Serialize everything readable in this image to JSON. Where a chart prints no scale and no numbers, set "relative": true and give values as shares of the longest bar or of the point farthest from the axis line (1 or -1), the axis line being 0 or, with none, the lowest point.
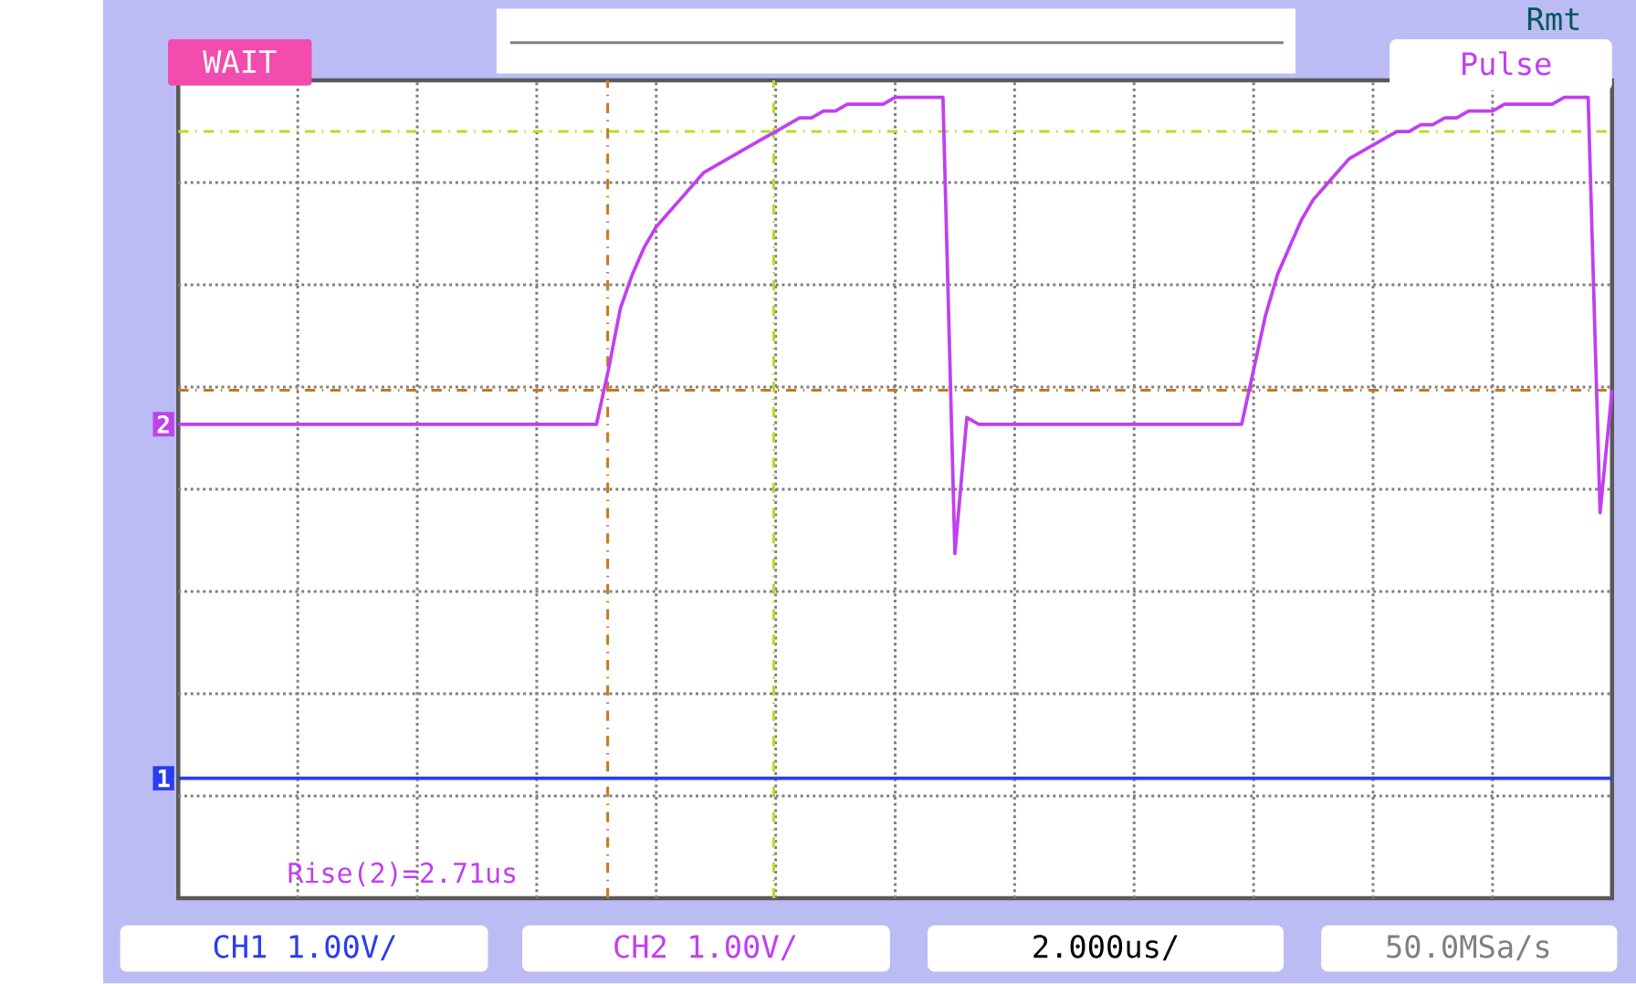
{
  "chart_data": {
    "type": "line",
    "relative": true,
    "grid": true,
    "categories": [
      null,
      null,
      null,
      null,
      null,
      null,
      null,
      null,
      null,
      null,
      null,
      null,
      null,
      null,
      null,
      null,
      null,
      null,
      null,
      null,
      null,
      null,
      null,
      null,
      null,
      null,
      null,
      null,
      null,
      null,
      null,
      null,
      null,
      null,
      null,
      null,
      null,
      null,
      null,
      null,
      null,
      null,
      null,
      null,
      null,
      null,
      null,
      null,
      null,
      null,
      null,
      null,
      null,
      null,
      null,
      null,
      null,
      null,
      null,
      null,
      null,
      null,
      null,
      null,
      null,
      null,
      null,
      null,
      null,
      null,
      null,
      null,
      null,
      null,
      null,
      null,
      null,
      null,
      null,
      null,
      null,
      null,
      null,
      null,
      null,
      null,
      null,
      null,
      null,
      null,
      null,
      null,
      null,
      null,
      null,
      null,
      null,
      null,
      null,
      null,
      null,
      null,
      null,
      null,
      null,
      null,
      null,
      null,
      null,
      null,
      null,
      null,
      null,
      null,
      null,
      null,
      null,
      null,
      null,
      null,
      null
    ],
    "series": [
      {
        "name": "2",
        "color": "#c040f0",
        "values": [
          0.52,
          0.52,
          0.52,
          0.52,
          0.52,
          0.52,
          0.52,
          0.52,
          0.52,
          0.52,
          0.52,
          0.52,
          0.52,
          0.52,
          0.52,
          0.52,
          0.52,
          0.52,
          0.52,
          0.52,
          0.52,
          0.52,
          0.52,
          0.52,
          0.52,
          0.52,
          0.52,
          0.52,
          0.52,
          0.52,
          0.52,
          0.52,
          0.52,
          0.52,
          0.52,
          0.52,
          0.6,
          0.69,
          0.74,
          0.78,
          0.81,
          0.83,
          0.85,
          0.87,
          0.89,
          0.9,
          0.91,
          0.92,
          0.93,
          0.94,
          0.95,
          0.96,
          0.97,
          0.97,
          0.98,
          0.98,
          0.99,
          0.99,
          0.99,
          0.99,
          1.0,
          1.0,
          1.0,
          1.0,
          1.0,
          0.33,
          0.53,
          0.52,
          0.52,
          0.52,
          0.52,
          0.52,
          0.52,
          0.52,
          0.52,
          0.52,
          0.52,
          0.52,
          0.52,
          0.52,
          0.52,
          0.52,
          0.52,
          0.52,
          0.52,
          0.52,
          0.52,
          0.52,
          0.52,
          0.52,
          0.6,
          0.68,
          0.74,
          0.78,
          0.82,
          0.85,
          0.87,
          0.89,
          0.91,
          0.92,
          0.93,
          0.94,
          0.95,
          0.95,
          0.96,
          0.96,
          0.97,
          0.97,
          0.98,
          0.98,
          0.98,
          0.99,
          0.99,
          0.99,
          0.99,
          0.99,
          1.0,
          1.0,
          1.0,
          0.39,
          0.57
        ]
      },
      {
        "name": "1",
        "color": "#2a3cf0",
        "values": [
          0,
          0,
          0,
          0,
          0,
          0,
          0,
          0,
          0,
          0,
          0,
          0,
          0,
          0,
          0,
          0,
          0,
          0,
          0,
          0,
          0,
          0,
          0,
          0,
          0,
          0,
          0,
          0,
          0,
          0,
          0,
          0,
          0,
          0,
          0,
          0,
          0,
          0,
          0,
          0,
          0,
          0,
          0,
          0,
          0,
          0,
          0,
          0,
          0,
          0,
          0,
          0,
          0,
          0,
          0,
          0,
          0,
          0,
          0,
          0,
          0,
          0,
          0,
          0,
          0,
          0,
          0,
          0,
          0,
          0,
          0,
          0,
          0,
          0,
          0,
          0,
          0,
          0,
          0,
          0,
          0,
          0,
          0,
          0,
          0,
          0,
          0,
          0,
          0,
          0,
          0,
          0,
          0,
          0,
          0,
          0,
          0,
          0,
          0,
          0,
          0,
          0,
          0,
          0,
          0,
          0,
          0,
          0,
          0,
          0,
          0,
          0,
          0,
          0,
          0,
          0,
          0,
          0,
          0,
          0,
          0
        ]
      }
    ],
    "ref_lines": [
      {
        "axis": "y",
        "value": 0.57,
        "color": "#c87820",
        "line_style": "dashed"
      },
      {
        "axis": "y",
        "value": 0.95,
        "color": "#b4e020",
        "line_style": "dashed"
      }
    ],
    "annotations": [
      "WAIT",
      "Rmt",
      "Pulse",
      "Rise(2)=2.71us",
      "CH1 1.00V/",
      "CH2 1.00V/",
      "2.000us/",
      "50.0MSa/s"
    ]
  }
}
